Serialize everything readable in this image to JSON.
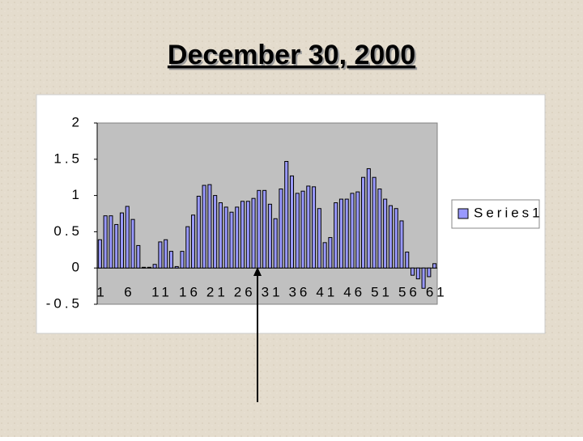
{
  "title": "December 30, 2000",
  "chart_data": {
    "type": "bar",
    "categories": [
      "1",
      null,
      null,
      null,
      null,
      "6",
      null,
      null,
      null,
      null,
      "11",
      null,
      null,
      null,
      null,
      "16",
      null,
      null,
      null,
      null,
      "21",
      null,
      null,
      null,
      null,
      "26",
      null,
      null,
      null,
      null,
      "31",
      null,
      null,
      null,
      null,
      "36",
      null,
      null,
      null,
      null,
      "41",
      null,
      null,
      null,
      null,
      "46",
      null,
      null,
      null,
      null,
      "51",
      null,
      null,
      null,
      null,
      "56",
      null,
      null,
      null,
      null,
      "61",
      null
    ],
    "series": [
      {
        "name": "Series1",
        "color": "#9999ff",
        "values": [
          0.39,
          0.72,
          0.72,
          0.6,
          0.76,
          0.85,
          0.67,
          0.31,
          0.01,
          0.01,
          0.05,
          0.36,
          0.39,
          0.23,
          0.02,
          0.23,
          0.57,
          0.73,
          0.99,
          1.14,
          1.15,
          1.0,
          0.9,
          0.84,
          0.77,
          0.84,
          0.92,
          0.92,
          0.96,
          1.07,
          1.07,
          0.88,
          0.68,
          1.09,
          1.47,
          1.27,
          1.03,
          1.06,
          1.13,
          1.12,
          0.82,
          0.35,
          0.42,
          0.9,
          0.95,
          0.95,
          1.03,
          1.05,
          1.25,
          1.37,
          1.25,
          1.09,
          0.95,
          0.86,
          0.82,
          0.65,
          0.22,
          -0.1,
          -0.15,
          -0.28,
          -0.12,
          0.06
        ]
      }
    ],
    "ylim": [
      -0.5,
      2
    ],
    "yticks": [
      2,
      1.5,
      1,
      0.5,
      0,
      -0.5
    ],
    "legend": "right"
  }
}
